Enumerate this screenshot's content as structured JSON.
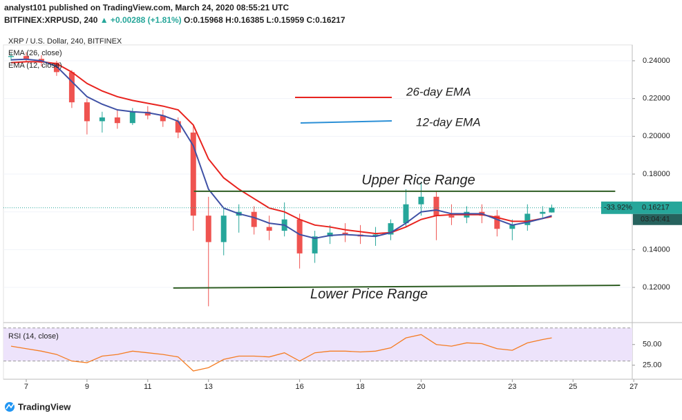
{
  "header": {
    "line1": "analyst101 published on TradingView.com, March 24, 2020 08:55:21 UTC",
    "symbol": "BITFINEX:XRPUSD, 240",
    "change": "▲ +0.00288 (+1.81%)",
    "ohlc": "O:0.15968 H:0.16385 L:0.15959 C:0.16217"
  },
  "footer": {
    "brand": "TradingView"
  },
  "chart_data": [
    {
      "type": "candlestick",
      "title": "XRP / U.S. Dollar, 240, BITFINEX",
      "up_color": "#26a69a",
      "down_color": "#ef5350",
      "x": [
        6.5,
        7,
        7.5,
        8,
        8.5,
        9,
        9.5,
        10,
        10.5,
        11,
        11.5,
        12,
        12.5,
        13,
        13.5,
        14,
        14.5,
        15,
        15.5,
        16,
        16.5,
        17,
        17.5,
        18,
        18.5,
        19,
        19.5,
        20,
        20.5,
        21,
        21.5,
        22,
        22.5,
        23,
        23.5,
        24,
        24.3
      ],
      "open": [
        0.242,
        0.2425,
        0.241,
        0.239,
        0.234,
        0.218,
        0.208,
        0.21,
        0.207,
        0.213,
        0.211,
        0.208,
        0.202,
        0.158,
        0.144,
        0.158,
        0.16,
        0.152,
        0.15,
        0.156,
        0.138,
        0.147,
        0.149,
        0.148,
        0.147,
        0.148,
        0.154,
        0.164,
        0.168,
        0.158,
        0.157,
        0.16,
        0.158,
        0.151,
        0.153,
        0.159,
        0.15968
      ],
      "high": [
        0.244,
        0.2445,
        0.243,
        0.24,
        0.235,
        0.22,
        0.213,
        0.214,
        0.215,
        0.216,
        0.214,
        0.21,
        0.206,
        0.168,
        0.162,
        0.164,
        0.163,
        0.158,
        0.165,
        0.159,
        0.15,
        0.153,
        0.154,
        0.153,
        0.152,
        0.156,
        0.172,
        0.176,
        0.171,
        0.164,
        0.163,
        0.164,
        0.161,
        0.156,
        0.164,
        0.163,
        0.16385
      ],
      "low": [
        0.24,
        0.2395,
        0.237,
        0.232,
        0.215,
        0.201,
        0.202,
        0.204,
        0.206,
        0.209,
        0.205,
        0.199,
        0.15,
        0.11,
        0.137,
        0.149,
        0.148,
        0.145,
        0.147,
        0.13,
        0.133,
        0.143,
        0.144,
        0.143,
        0.142,
        0.145,
        0.152,
        0.158,
        0.145,
        0.153,
        0.154,
        0.154,
        0.147,
        0.145,
        0.15,
        0.157,
        0.15959
      ],
      "close": [
        0.2425,
        0.241,
        0.239,
        0.234,
        0.218,
        0.208,
        0.21,
        0.207,
        0.213,
        0.211,
        0.208,
        0.202,
        0.158,
        0.144,
        0.158,
        0.16,
        0.152,
        0.15,
        0.156,
        0.138,
        0.147,
        0.149,
        0.148,
        0.147,
        0.148,
        0.154,
        0.164,
        0.168,
        0.158,
        0.157,
        0.16,
        0.158,
        0.151,
        0.153,
        0.159,
        0.16,
        0.16217
      ],
      "series": [
        {
          "name": "EMA (26, close)",
          "color": "#e8231e",
          "values": [
            0.239,
            0.2395,
            0.2395,
            0.2385,
            0.234,
            0.228,
            0.224,
            0.221,
            0.219,
            0.2175,
            0.216,
            0.214,
            0.206,
            0.188,
            0.178,
            0.172,
            0.167,
            0.162,
            0.16,
            0.156,
            0.153,
            0.152,
            0.1505,
            0.1495,
            0.1485,
            0.149,
            0.152,
            0.156,
            0.158,
            0.1585,
            0.1585,
            0.1585,
            0.157,
            0.155,
            0.155,
            0.1565,
            0.1575
          ]
        },
        {
          "name": "EMA (12, close)",
          "color": "#3f51a5",
          "values": [
            0.2405,
            0.2408,
            0.24,
            0.237,
            0.229,
            0.221,
            0.217,
            0.214,
            0.213,
            0.2125,
            0.211,
            0.208,
            0.195,
            0.172,
            0.162,
            0.159,
            0.157,
            0.154,
            0.153,
            0.148,
            0.146,
            0.1475,
            0.148,
            0.1475,
            0.147,
            0.149,
            0.154,
            0.16,
            0.161,
            0.159,
            0.159,
            0.159,
            0.156,
            0.153,
            0.1545,
            0.1565,
            0.158
          ]
        }
      ],
      "annotations": [
        {
          "text": "26-day EMA",
          "color": "#e8231e"
        },
        {
          "text": "12-day EMA",
          "color": "#2a8fd6"
        }
      ],
      "levels": [
        {
          "label": "Upper Rice Range",
          "x": [
            12.52,
            26.39
          ],
          "y": [
            0.1709,
            0.1709
          ]
        },
        {
          "label": "Lower Price Range",
          "x": [
            11.84,
            26.55
          ],
          "y": [
            0.1197,
            0.1211
          ]
        }
      ],
      "last_price": {
        "change": "-33.92%",
        "price": "0.16217",
        "countdown": "03:04:41"
      },
      "xlim": [
        6.25,
        26.95
      ],
      "ylim": [
        0.1021,
        0.2484
      ],
      "yticks": [
        {
          "value": 0.12,
          "label": "0.12000"
        },
        {
          "value": 0.14,
          "label": "0.14000"
        },
        {
          "value": 0.16,
          "label": "0.16000"
        },
        {
          "value": 0.18,
          "label": "0.18000"
        },
        {
          "value": 0.2,
          "label": "0.20000"
        },
        {
          "value": 0.22,
          "label": "0.22000"
        },
        {
          "value": 0.24,
          "label": "0.24000"
        }
      ],
      "grid": true
    },
    {
      "type": "line",
      "title": "RSI (14, close)",
      "color": "#f57c22",
      "band": [
        30,
        70
      ],
      "band_color": "#ede3fb",
      "x": [
        6.5,
        7,
        7.5,
        8,
        8.5,
        9,
        9.5,
        10,
        10.5,
        11,
        11.5,
        12,
        12.5,
        13,
        13.5,
        14,
        14.5,
        15,
        15.5,
        16,
        16.5,
        17,
        17.5,
        18,
        18.5,
        19,
        19.5,
        20,
        20.5,
        21,
        21.5,
        22,
        22.5,
        23,
        23.5,
        24,
        24.3
      ],
      "values": [
        48,
        45,
        42,
        38,
        30,
        28,
        36,
        38,
        42,
        40,
        38,
        35,
        18,
        22,
        32,
        36,
        36,
        35,
        40,
        30,
        40,
        42,
        42,
        41,
        42,
        46,
        58,
        62,
        50,
        48,
        52,
        51,
        45,
        43,
        52,
        56,
        58
      ],
      "xlim": [
        6.25,
        26.95
      ],
      "ylim": [
        8,
        74
      ],
      "yticks": [
        {
          "value": 25,
          "label": "25.00"
        },
        {
          "value": 50,
          "label": "50.00"
        }
      ],
      "xticks": [
        7,
        9,
        11,
        13,
        16,
        18,
        20,
        23,
        25,
        27
      ]
    }
  ]
}
